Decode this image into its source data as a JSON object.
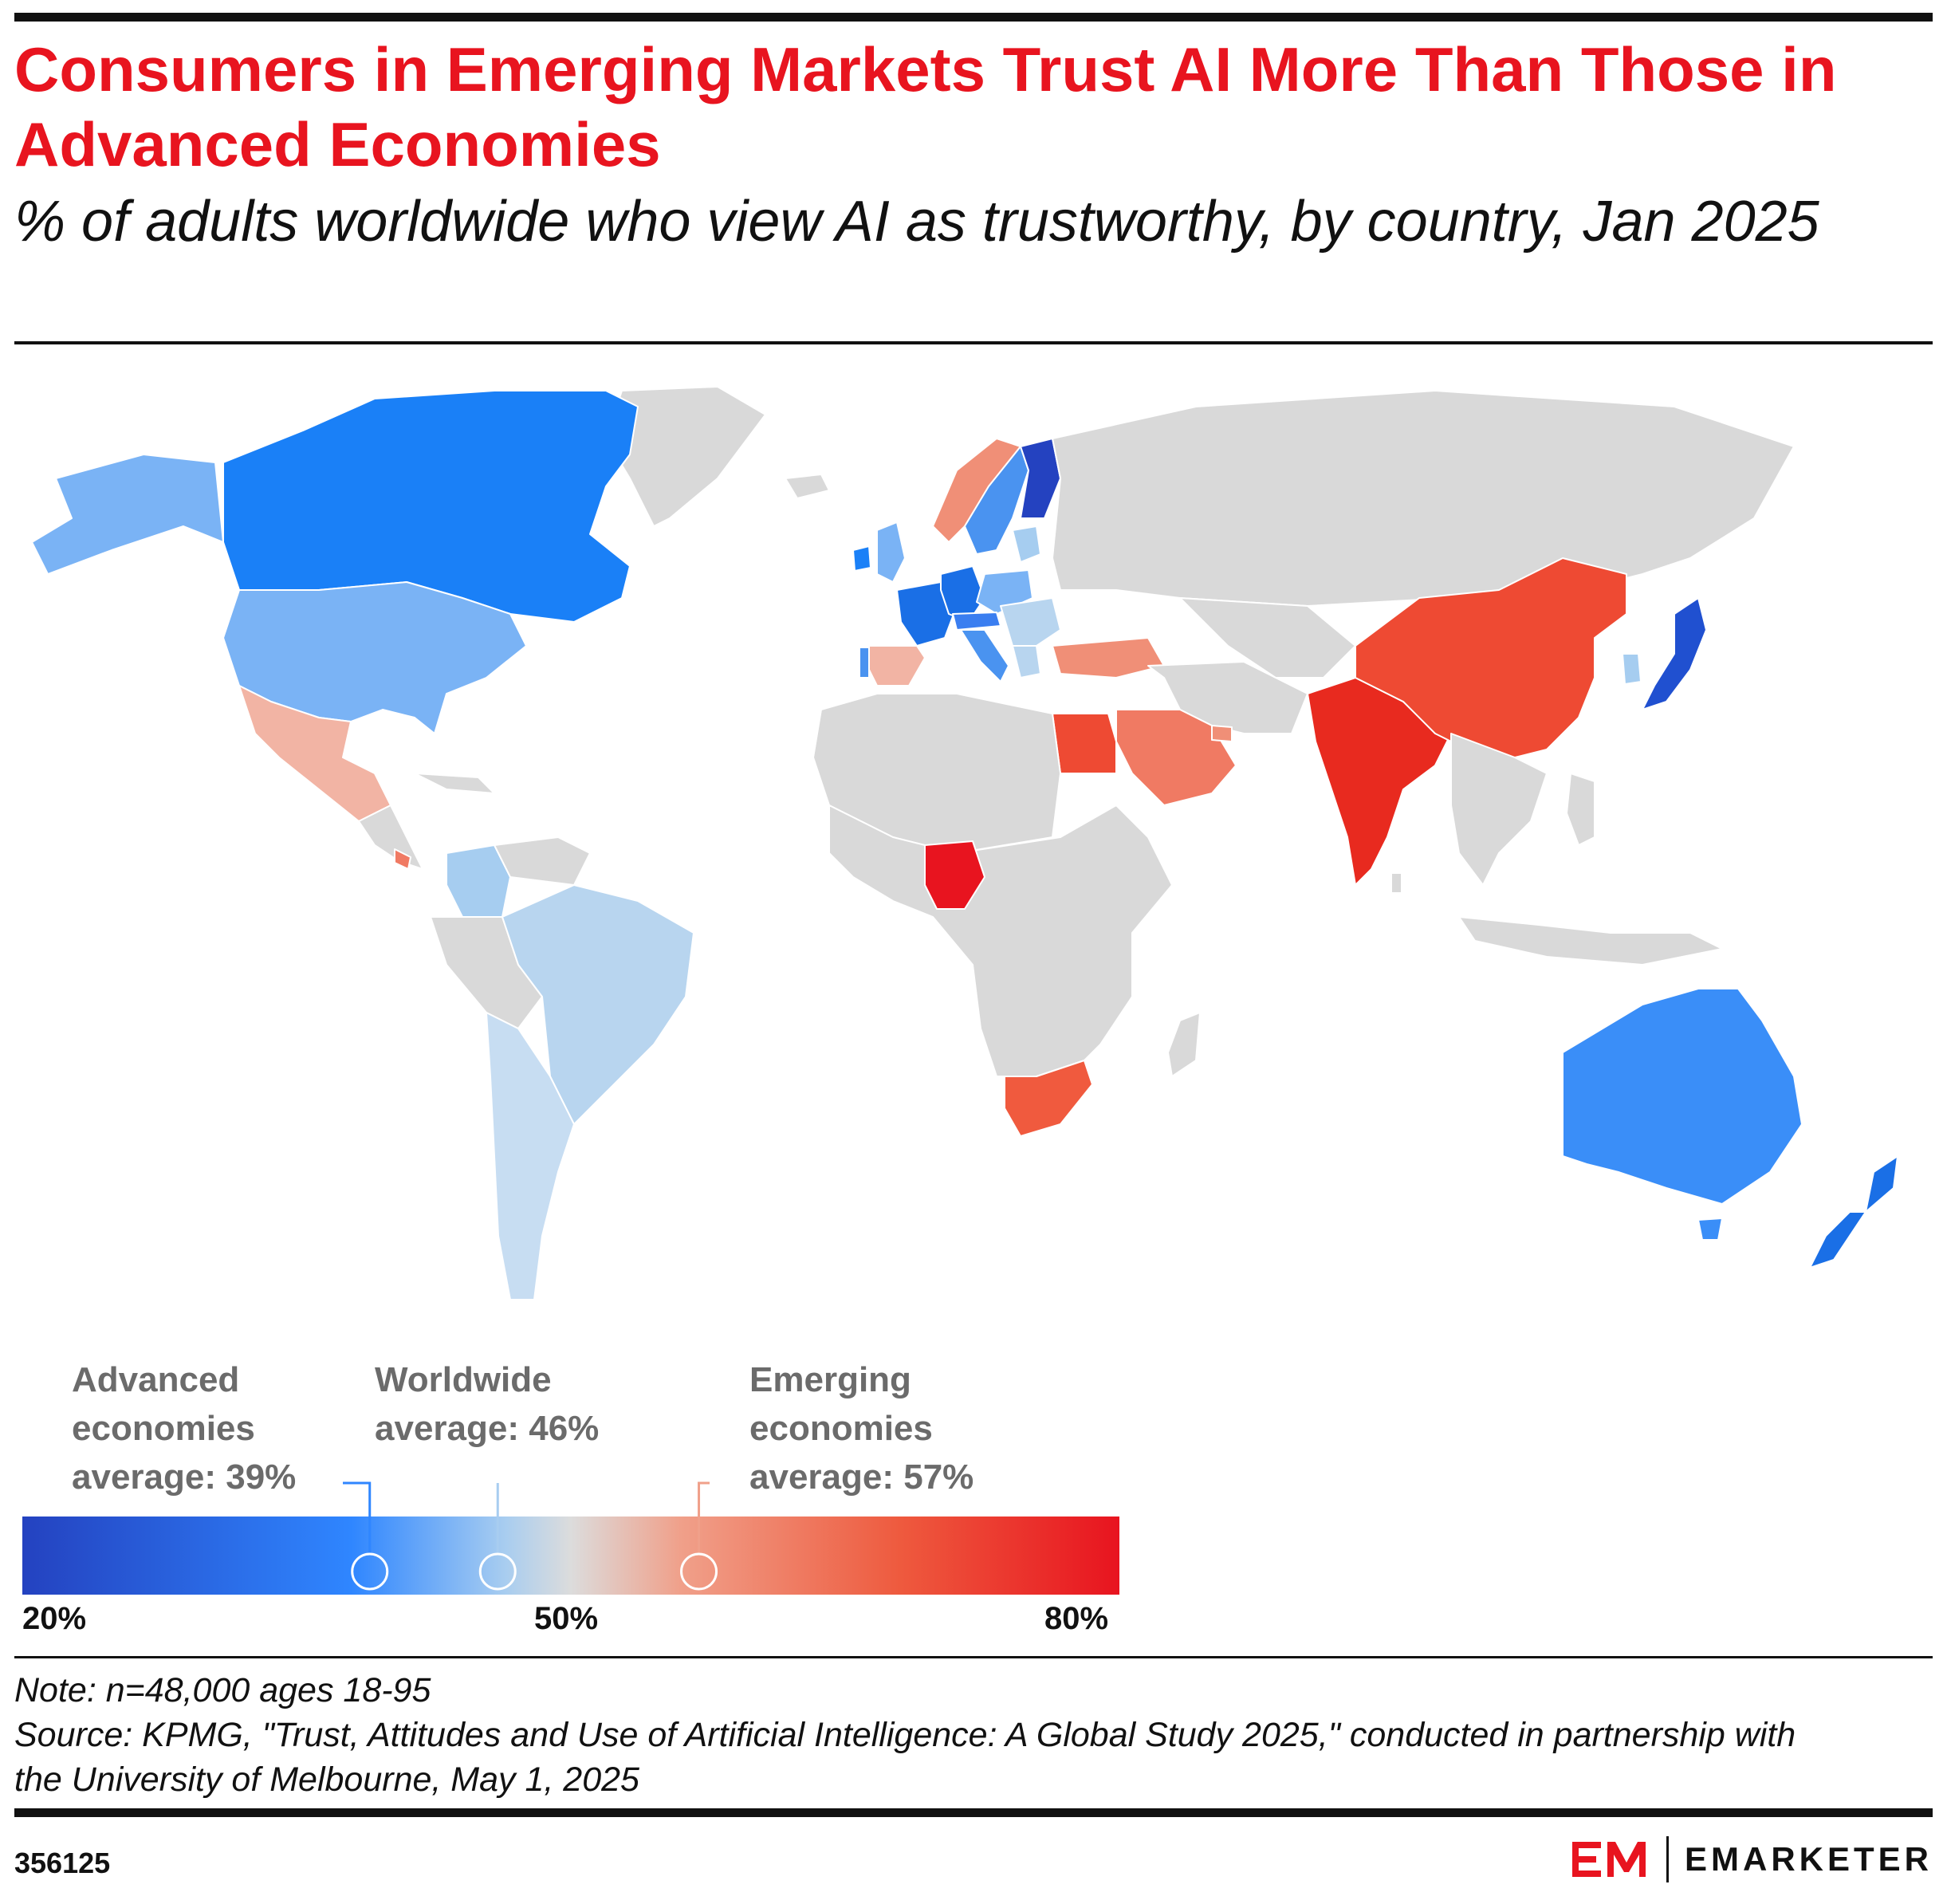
{
  "title": "Consumers in Emerging Markets Trust AI More Than Those in Advanced Economies",
  "subtitle": "% of adults worldwide who view AI as trustworthy, by country, Jan 2025",
  "legend": {
    "advanced_label": "Advanced economies average: 39%",
    "worldwide_label": "Worldwide average: 46%",
    "emerging_label": "Emerging economies average: 57%",
    "min_label": "20%",
    "mid_label": "50%",
    "max_label": "80%",
    "scale": {
      "min": 20,
      "mid": 50,
      "max": 80
    },
    "markers": [
      {
        "name": "Advanced economies average",
        "value": 39
      },
      {
        "name": "Worldwide average",
        "value": 46
      },
      {
        "name": "Emerging economies average",
        "value": 57
      }
    ],
    "colors": {
      "low": "#2442c0",
      "low_mid": "#2f86ff",
      "mid_light": "#a8cdf0",
      "neutral": "#dcdcdc",
      "high_light": "#f0a08a",
      "high_mid": "#ee5a3e",
      "high": "#e8141f",
      "no_data": "#d9d9d9"
    }
  },
  "note": "Note: n=48,000 ages 18-95",
  "source": "Source: KPMG, \"Trust, Attitudes and Use of Artificial Intelligence: A Global Study 2025,\" conducted in partnership with the University of Melbourne, May 1, 2025",
  "chart_id": "356125",
  "brand": {
    "mark": "EM",
    "name": "EMARKETER"
  }
}
